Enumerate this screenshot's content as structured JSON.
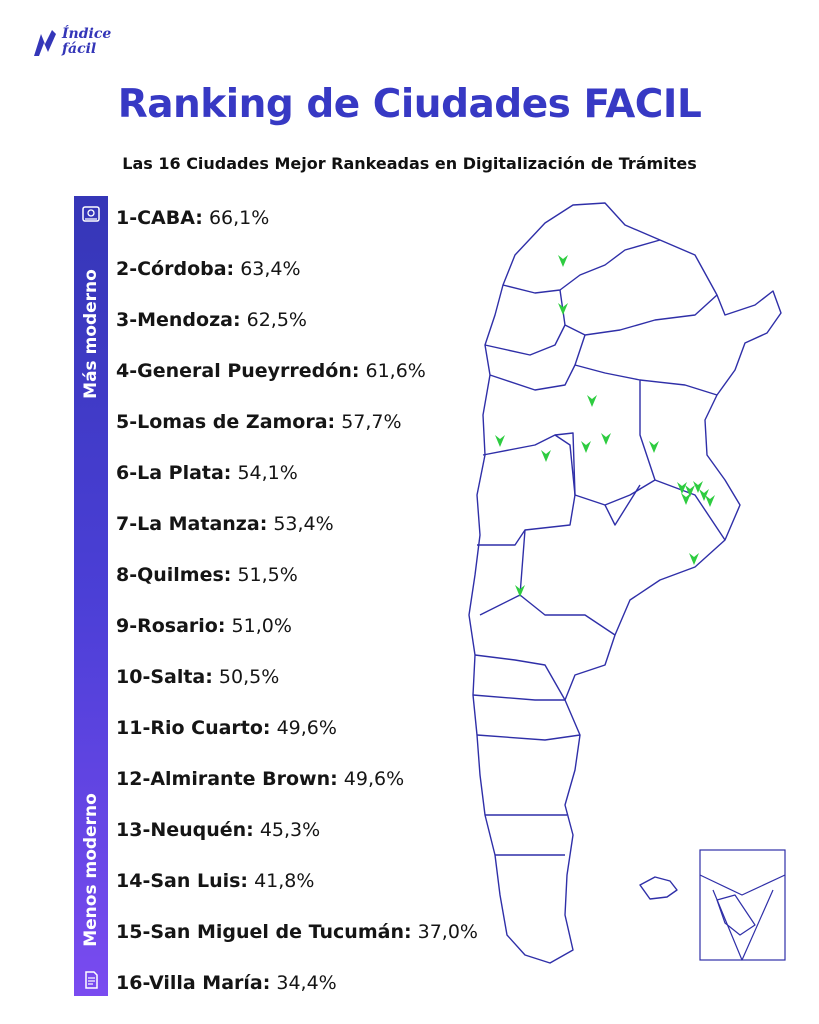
{
  "brand": {
    "line1": "Índice",
    "line2": "fácil",
    "color": "#3436b8"
  },
  "title": "Ranking de Ciudades FACIL",
  "subtitle": "Las 16 Ciudades Mejor Rankeadas en Digitalización de Trámites",
  "scale": {
    "top_label": "Más moderno",
    "bottom_label": "Menos moderno",
    "top_icon": "modern-building-icon",
    "bottom_icon": "paper-document-icon",
    "color_top": "#3536b7",
    "color_bottom": "#7a4bf0"
  },
  "ranking": [
    {
      "name": "1-CABA:",
      "value": "66,1%"
    },
    {
      "name": "2-Córdoba:",
      "value": "63,4%"
    },
    {
      "name": "3-Mendoza:",
      "value": "62,5%"
    },
    {
      "name": "4-General Pueyrredón:",
      "value": "61,6%"
    },
    {
      "name": "5-Lomas de Zamora:",
      "value": "57,7%"
    },
    {
      "name": "6-La Plata:",
      "value": "54,1%"
    },
    {
      "name": "7-La Matanza:",
      "value": "53,4%"
    },
    {
      "name": "8-Quilmes:",
      "value": "51,5%"
    },
    {
      "name": "9-Rosario:",
      "value": "51,0%"
    },
    {
      "name": "10-Salta:",
      "value": "50,5%"
    },
    {
      "name": "11-Rio Cuarto:",
      "value": "49,6%"
    },
    {
      "name": "12-Almirante Brown:",
      "value": "49,6%"
    },
    {
      "name": "13-Neuquén:",
      "value": "45,3%"
    },
    {
      "name": "14-San Luis:",
      "value": "41,8%"
    },
    {
      "name": "15-San Miguel de Tucumán:",
      "value": "37,0%"
    },
    {
      "name": "16-Villa María:",
      "value": "34,4%"
    }
  ],
  "map": {
    "outline_color": "#2f2fa8",
    "marker_color": "#2ecc40",
    "marker_icon": "check-marker-icon"
  }
}
